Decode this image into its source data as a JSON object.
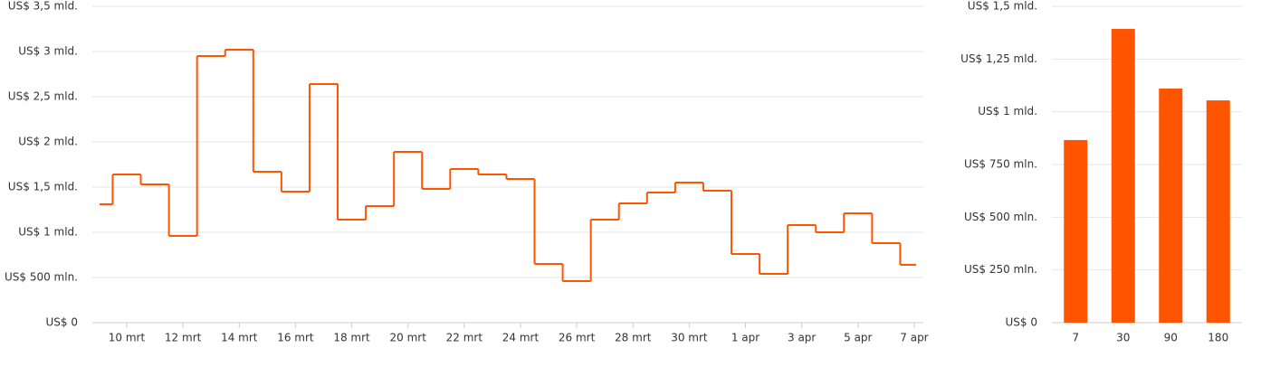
{
  "chart_data": [
    {
      "type": "step",
      "categories": [
        null,
        "10 mrt",
        null,
        "12 mrt",
        null,
        "14 mrt",
        null,
        "16 mrt",
        null,
        "18 mrt",
        null,
        "20 mrt",
        null,
        "22 mrt",
        null,
        "24 mrt",
        null,
        "26 mrt",
        null,
        "28 mrt",
        null,
        "30 mrt",
        null,
        "1 apr",
        null,
        "3 apr",
        null,
        "5 apr",
        null,
        "7 apr"
      ],
      "values": [
        1310000000,
        1640000000,
        1530000000,
        960000000,
        2950000000,
        3020000000,
        1670000000,
        1450000000,
        2640000000,
        1140000000,
        1290000000,
        1890000000,
        1480000000,
        1700000000,
        1640000000,
        1590000000,
        650000000,
        460000000,
        1140000000,
        1320000000,
        1440000000,
        1550000000,
        1460000000,
        760000000,
        540000000,
        1080000000,
        1000000000,
        1210000000,
        880000000,
        640000000
      ],
      "color": "#ff5500",
      "ylim": [
        0,
        3500000000
      ],
      "yticks": [
        {
          "value": 0,
          "label": "US$ 0"
        },
        {
          "value": 500000000,
          "label": "US$ 500 mln."
        },
        {
          "value": 1000000000,
          "label": "US$ 1 mld."
        },
        {
          "value": 1500000000,
          "label": "US$ 1,5 mld."
        },
        {
          "value": 2000000000,
          "label": "US$ 2 mld."
        },
        {
          "value": 2500000000,
          "label": "US$ 2,5 mld."
        },
        {
          "value": 3000000000,
          "label": "US$ 3 mld."
        },
        {
          "value": 3500000000,
          "label": "US$ 3,5 mld."
        }
      ],
      "grid": true
    },
    {
      "type": "bar",
      "categories": [
        "7",
        "30",
        "90",
        "180"
      ],
      "values": [
        866000000,
        1393000000,
        1110000000,
        1054000000
      ],
      "color": "#ff5500",
      "ylim": [
        0,
        1500000000
      ],
      "yticks": [
        {
          "value": 0,
          "label": "US$ 0"
        },
        {
          "value": 250000000,
          "label": "US$ 250 mln."
        },
        {
          "value": 500000000,
          "label": "US$ 500 mln."
        },
        {
          "value": 750000000,
          "label": "US$ 750 mln."
        },
        {
          "value": 1000000000,
          "label": "US$ 1 mld."
        },
        {
          "value": 1250000000,
          "label": "US$ 1,25 mld."
        },
        {
          "value": 1500000000,
          "label": "US$ 1,5 mld."
        }
      ],
      "grid": true
    }
  ]
}
